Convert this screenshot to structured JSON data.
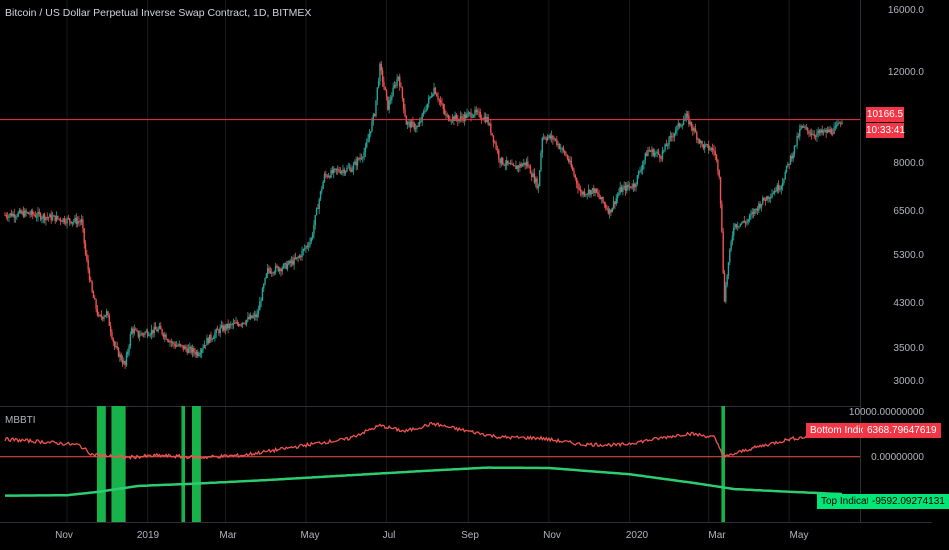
{
  "title": "Bitcoin / US Dollar Perpetual Inverse Swap Contract, 1D, BITMEX",
  "indicator_name": "MBBTI",
  "colors": {
    "background": "#000000",
    "up": "#26a69a",
    "down": "#ef5350",
    "price_line": "#f23645",
    "bottom_line": "#ef5350",
    "top_line": "#2ecc71",
    "signal_bar": "#17b34a",
    "grid": "#1a1a1a"
  },
  "price_axis_labels": [
    "16000.0",
    "12000.0",
    "8000.0",
    "6500.0",
    "5300.0",
    "4300.0",
    "3500.0",
    "3000.0"
  ],
  "indicator_axis_labels": [
    "10000.00000000",
    "0.00000000"
  ],
  "x_axis_labels": [
    "Nov",
    "2019",
    "Mar",
    "May",
    "Jul",
    "Sep",
    "Nov",
    "2020",
    "Mar",
    "May"
  ],
  "last_price": "10166.5",
  "countdown": "10:33:41",
  "bottom_indicator": {
    "label": "Bottom Indicator",
    "value": "6368.79647619"
  },
  "top_indicator": {
    "label": "Top Indicator",
    "value": "-9592.09274131"
  },
  "chart_data": [
    {
      "type": "candlestick",
      "title": "Bitcoin / US Dollar Perpetual Inverse Swap Contract, 1D, BITMEX",
      "y_scale": "log",
      "ylim": [
        2700,
        17500
      ],
      "series": [
        {
          "name": "price",
          "points": [
            [
              "2018-09-15",
              6500
            ],
            [
              "2018-10-01",
              6550
            ],
            [
              "2018-10-15",
              6450
            ],
            [
              "2018-11-01",
              6350
            ],
            [
              "2018-11-12",
              6300
            ],
            [
              "2018-11-15",
              5400
            ],
            [
              "2018-11-20",
              4500
            ],
            [
              "2018-11-25",
              4000
            ],
            [
              "2018-12-01",
              4100
            ],
            [
              "2018-12-07",
              3500
            ],
            [
              "2018-12-15",
              3200
            ],
            [
              "2018-12-20",
              3800
            ],
            [
              "2018-12-25",
              3700
            ],
            [
              "2019-01-01",
              3750
            ],
            [
              "2019-01-10",
              3800
            ],
            [
              "2019-01-20",
              3550
            ],
            [
              "2019-02-01",
              3450
            ],
            [
              "2019-02-08",
              3400
            ],
            [
              "2019-02-15",
              3600
            ],
            [
              "2019-02-25",
              3800
            ],
            [
              "2019-03-10",
              3900
            ],
            [
              "2019-03-25",
              4050
            ],
            [
              "2019-04-02",
              5000
            ],
            [
              "2019-04-15",
              5100
            ],
            [
              "2019-04-25",
              5300
            ],
            [
              "2019-05-05",
              5800
            ],
            [
              "2019-05-15",
              7800
            ],
            [
              "2019-05-25",
              8000
            ],
            [
              "2019-06-05",
              8100
            ],
            [
              "2019-06-15",
              8800
            ],
            [
              "2019-06-22",
              10500
            ],
            [
              "2019-06-26",
              13000
            ],
            [
              "2019-07-02",
              10800
            ],
            [
              "2019-07-10",
              12500
            ],
            [
              "2019-07-16",
              10000
            ],
            [
              "2019-07-25",
              9800
            ],
            [
              "2019-08-06",
              11800
            ],
            [
              "2019-08-15",
              10300
            ],
            [
              "2019-08-25",
              10200
            ],
            [
              "2019-09-05",
              10500
            ],
            [
              "2019-09-15",
              10200
            ],
            [
              "2019-09-25",
              8400
            ],
            [
              "2019-10-05",
              8100
            ],
            [
              "2019-10-15",
              8300
            ],
            [
              "2019-10-24",
              7400
            ],
            [
              "2019-10-27",
              9400
            ],
            [
              "2019-11-05",
              9300
            ],
            [
              "2019-11-15",
              8500
            ],
            [
              "2019-11-25",
              7200
            ],
            [
              "2019-12-05",
              7300
            ],
            [
              "2019-12-17",
              6600
            ],
            [
              "2019-12-25",
              7300
            ],
            [
              "2020-01-05",
              7500
            ],
            [
              "2020-01-15",
              8800
            ],
            [
              "2020-01-25",
              8600
            ],
            [
              "2020-02-05",
              9700
            ],
            [
              "2020-02-13",
              10300
            ],
            [
              "2020-02-25",
              9000
            ],
            [
              "2020-03-05",
              8800
            ],
            [
              "2020-03-09",
              7900
            ],
            [
              "2020-03-12",
              5000
            ],
            [
              "2020-03-13",
              4400
            ],
            [
              "2020-03-20",
              6200
            ],
            [
              "2020-03-30",
              6300
            ],
            [
              "2020-04-10",
              6900
            ],
            [
              "2020-04-25",
              7500
            ],
            [
              "2020-05-05",
              8900
            ],
            [
              "2020-05-10",
              9800
            ],
            [
              "2020-05-20",
              9500
            ],
            [
              "2020-05-30",
              9600
            ],
            [
              "2020-06-05",
              9700
            ],
            [
              "2020-06-10",
              10166.5
            ]
          ]
        }
      ]
    },
    {
      "type": "line",
      "title": "MBBTI",
      "ylim": [
        -16000,
        12000
      ],
      "series": [
        {
          "name": "Bottom Indicator",
          "points": [
            [
              "2018-09-15",
              4500
            ],
            [
              "2018-10-15",
              3800
            ],
            [
              "2018-11-10",
              3000
            ],
            [
              "2018-11-20",
              600
            ],
            [
              "2018-12-15",
              -200
            ],
            [
              "2019-01-10",
              300
            ],
            [
              "2019-02-10",
              -200
            ],
            [
              "2019-03-15",
              400
            ],
            [
              "2019-04-10",
              1800
            ],
            [
              "2019-05-10",
              3500
            ],
            [
              "2019-06-01",
              4500
            ],
            [
              "2019-06-26",
              8000
            ],
            [
              "2019-07-15",
              6500
            ],
            [
              "2019-08-05",
              8500
            ],
            [
              "2019-08-25",
              7000
            ],
            [
              "2019-09-25",
              5000
            ],
            [
              "2019-10-25",
              4800
            ],
            [
              "2019-11-25",
              3200
            ],
            [
              "2019-12-25",
              3000
            ],
            [
              "2020-01-25",
              4800
            ],
            [
              "2020-02-15",
              6000
            ],
            [
              "2020-03-05",
              5000
            ],
            [
              "2020-03-13",
              -100
            ],
            [
              "2020-04-01",
              2000
            ],
            [
              "2020-05-01",
              4500
            ],
            [
              "2020-06-10",
              6368.79647619
            ]
          ]
        },
        {
          "name": "Top Indicator",
          "points": [
            [
              "2018-09-15",
              -10000
            ],
            [
              "2018-11-01",
              -9900
            ],
            [
              "2018-11-25",
              -9000
            ],
            [
              "2018-12-25",
              -7500
            ],
            [
              "2019-02-01",
              -7000
            ],
            [
              "2019-04-01",
              -6000
            ],
            [
              "2019-06-01",
              -4800
            ],
            [
              "2019-08-01",
              -3600
            ],
            [
              "2019-09-15",
              -2800
            ],
            [
              "2019-11-01",
              -2900
            ],
            [
              "2020-01-01",
              -4500
            ],
            [
              "2020-02-20",
              -6800
            ],
            [
              "2020-03-20",
              -8300
            ],
            [
              "2020-05-01",
              -9000
            ],
            [
              "2020-06-10",
              -9592.09274131
            ]
          ]
        }
      ],
      "signals": [
        "2018-11-25",
        "2018-11-27",
        "2018-11-29",
        "2018-12-06",
        "2018-12-08",
        "2018-12-10",
        "2018-12-12",
        "2018-12-14",
        "2019-01-28",
        "2019-02-05",
        "2019-02-07",
        "2019-02-09",
        "2020-03-12"
      ]
    }
  ]
}
